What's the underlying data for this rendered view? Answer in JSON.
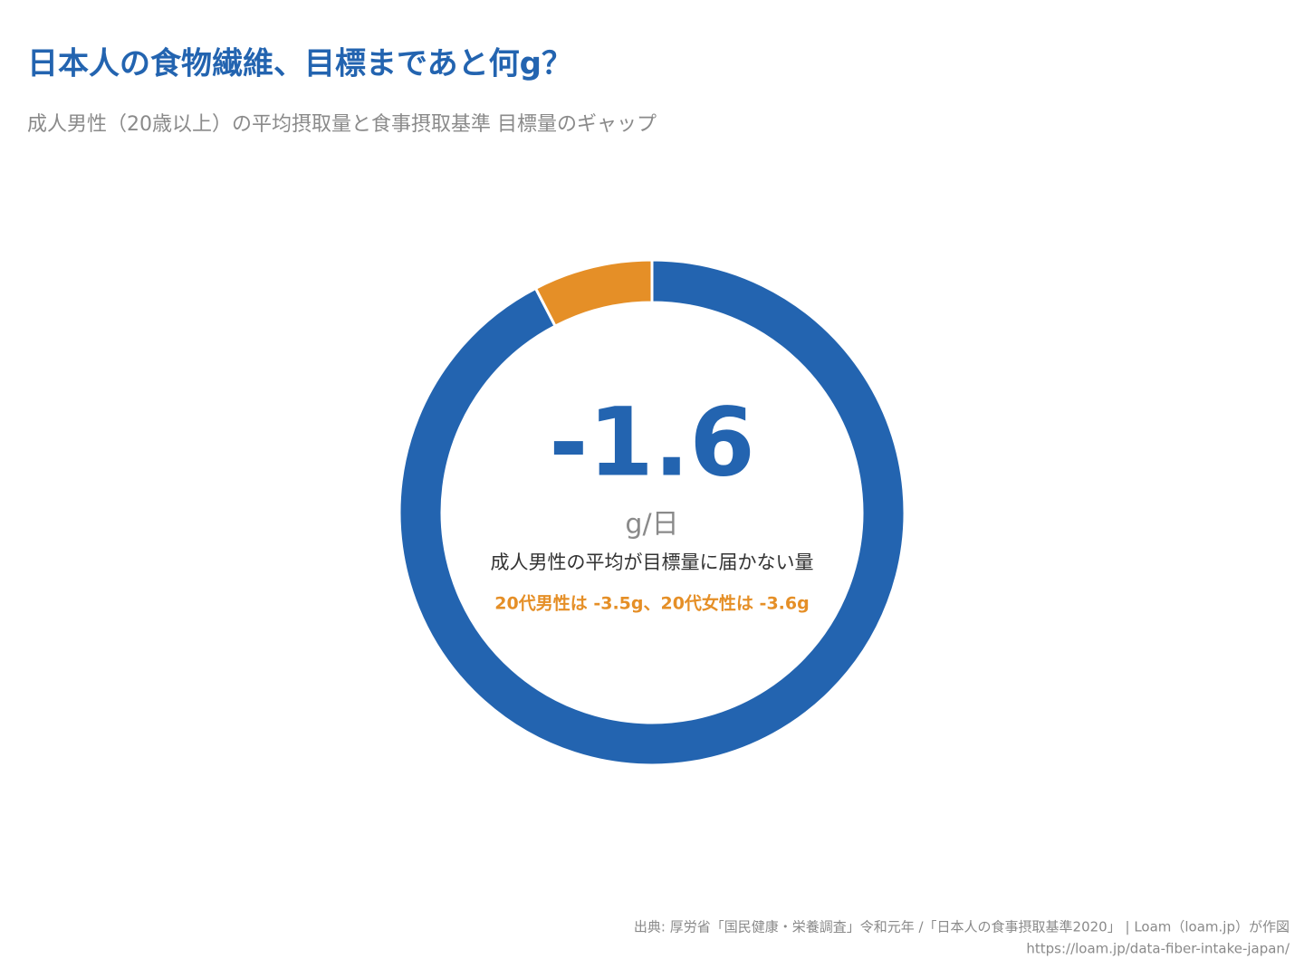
{
  "chart_data": {
    "type": "donut",
    "title": "日本人の食物繊維、目標まであと何g？",
    "subtitle": "成人男性（20歳以上）の平均摂取量と食事摂取基準 目標量のギャップ",
    "values": [
      19.4,
      1.6
    ],
    "colors": [
      "#2364b0",
      "#e58f27"
    ],
    "center_value": -1.6,
    "center_unit": "g/日",
    "center_caption": "成人男性の平均が目標量に届かない量",
    "center_note": "20代男性は -3.5g、20代女性は -3.6g",
    "source": "出典: 厚労省「国民健康・栄養調査」令和元年 /「日本人の食事摂取基準2020」 | Loam（loam.jp）が作図",
    "url": "https://loam.jp/data-fiber-intake-japan/"
  }
}
